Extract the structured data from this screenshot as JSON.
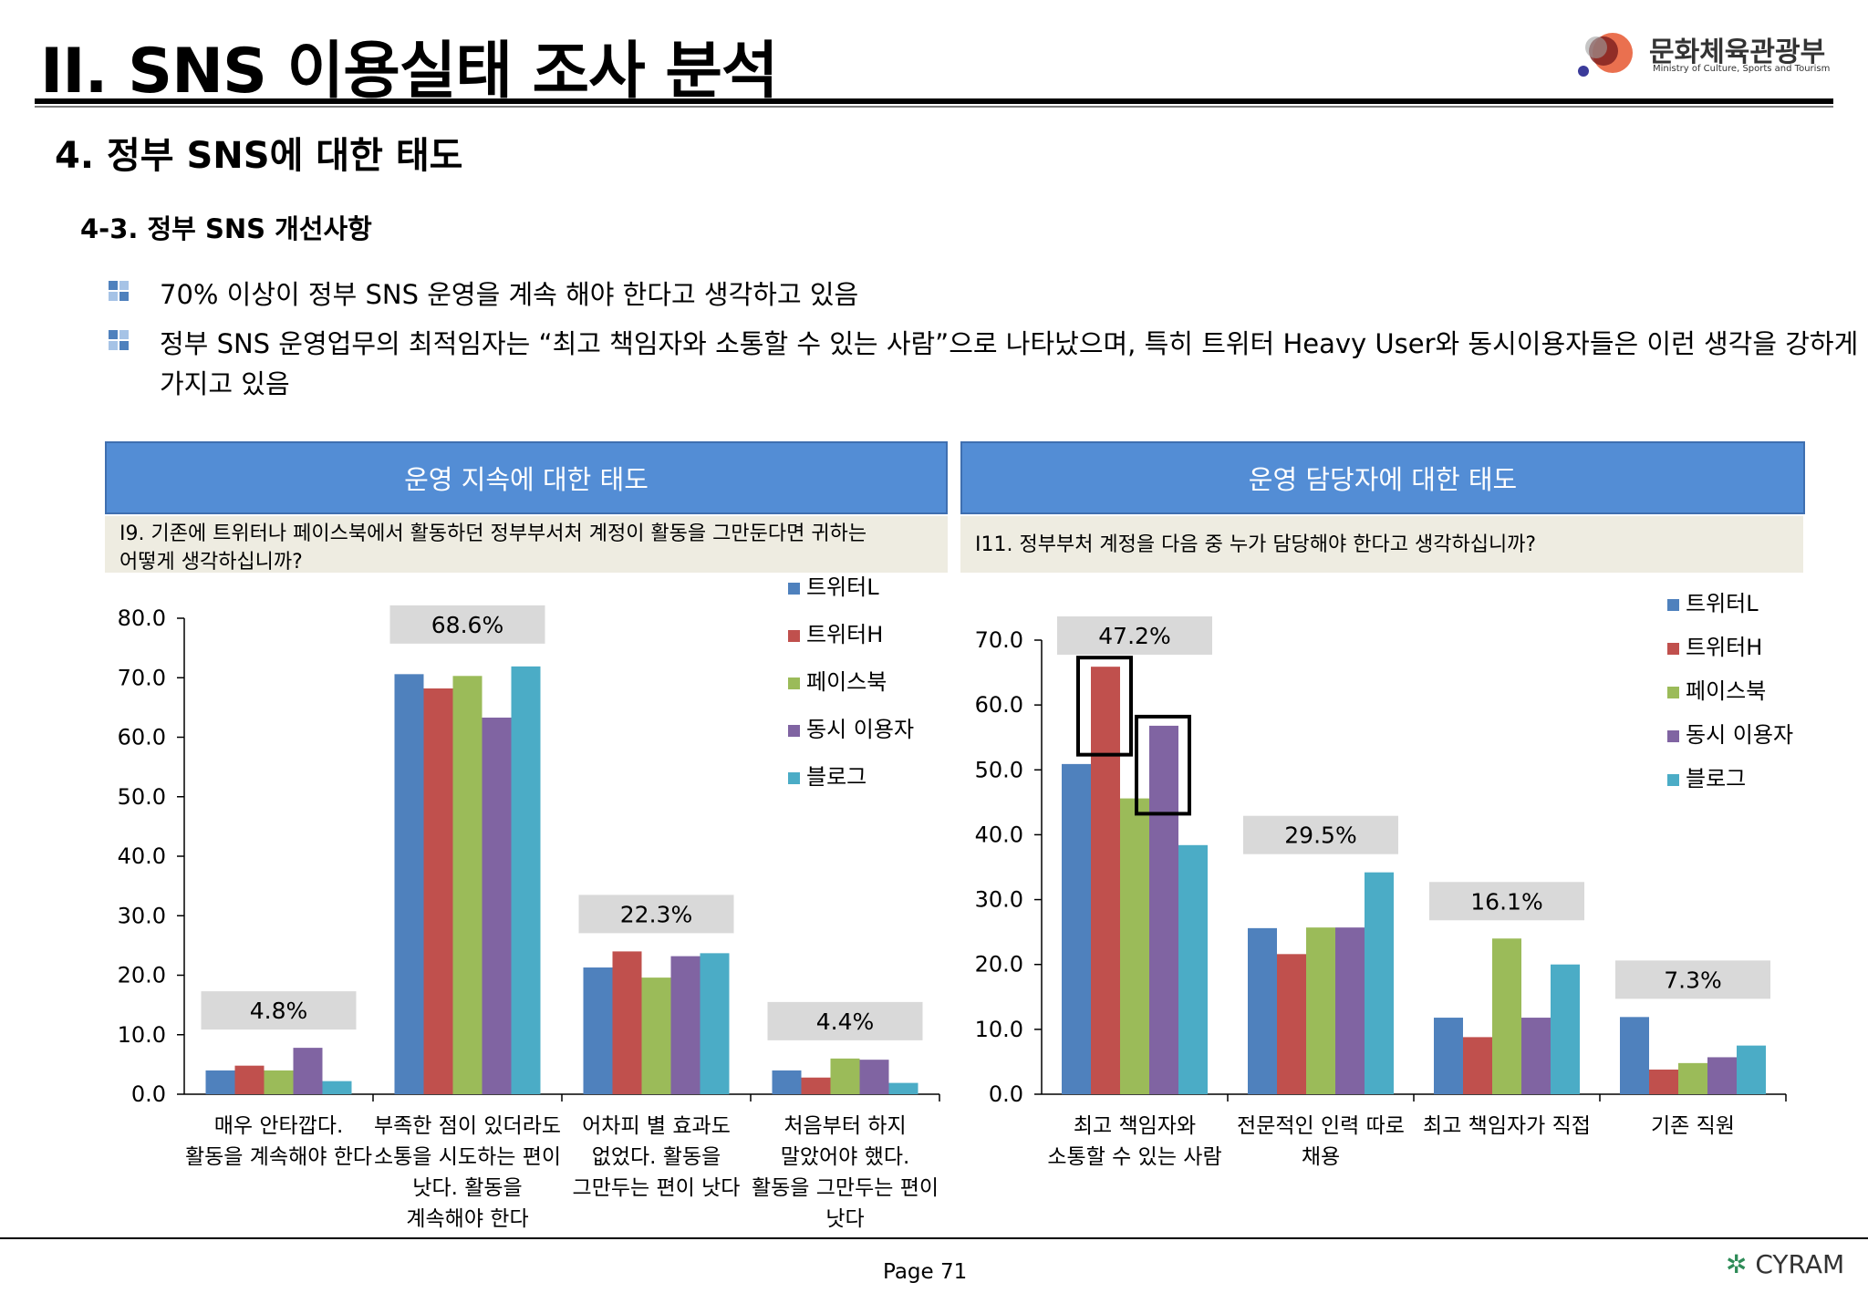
{
  "header": {
    "title": "II. SNS 이용실태 조사 분석",
    "logo_name": "문화체육관광부",
    "logo_sub": "Ministry of Culture, Sports and Tourism"
  },
  "section_title": "4. 정부 SNS에 대한 태도",
  "subsection_title": "4-3. 정부 SNS 개선사항",
  "bullets": [
    {
      "line1": "70% 이상이 정부 SNS 운영을 계속 해야 한다고 생각하고 있음",
      "line2": ""
    },
    {
      "line1": "정부 SNS 운영업무의 최적임자는 “최고 책임자와 소통할 수 있는 사람”으로 나타났으며, 특히 트위터 Heavy User와 동시이용자들은 이런 생각을 강하게",
      "line2": "가지고 있음"
    }
  ],
  "colors": {
    "header_blue": "#538dd5",
    "question_bg": "#eeece1",
    "callout_bg": "#d9d9d9",
    "series": [
      "#4f81bd",
      "#c0504d",
      "#9bbb59",
      "#8064a2",
      "#4bacc6"
    ]
  },
  "footer": {
    "page": "Page  71",
    "brand": "CYRAM"
  },
  "panels": [
    {
      "header": "운영 지속에 대한 태도",
      "question_line1": "I9. 기존에 트위터나 페이스북에서 활동하던 정부부서처 계정이 활동을 그만둔다면 귀하는",
      "question_line2": "어떻게 생각하십니까?"
    },
    {
      "header": "운영 담당자에 대한 태도",
      "question_line1": "I11. 정부부처 계정을 다음 중 누가 담당해야 한다고 생각하십니까?",
      "question_line2": ""
    }
  ],
  "chart_data": [
    {
      "type": "bar",
      "title": "운영 지속에 대한 태도",
      "categories": [
        [
          "매우 안타깝다.",
          "활동을 계속해야 한다"
        ],
        [
          "부족한 점이 있더라도",
          "소통을 시도하는 편이",
          "낫다. 활동을",
          "계속해야 한다"
        ],
        [
          "어차피 별 효과도",
          "없었다. 활동을",
          "그만두는 편이 낫다"
        ],
        [
          "처음부터 하지",
          "말았어야 했다.",
          "활동을 그만두는 편이",
          "낫다"
        ]
      ],
      "series": [
        {
          "name": "트위터L",
          "values": [
            4.0,
            70.6,
            21.3,
            4.0
          ]
        },
        {
          "name": "트위터H",
          "values": [
            4.8,
            68.2,
            24.0,
            2.8
          ]
        },
        {
          "name": "페이스북",
          "values": [
            4.0,
            70.3,
            19.6,
            6.0
          ]
        },
        {
          "name": "동시 이용자",
          "values": [
            7.8,
            63.3,
            23.2,
            5.8
          ]
        },
        {
          "name": "블로그",
          "values": [
            2.2,
            71.9,
            23.7,
            1.9
          ]
        }
      ],
      "callouts": [
        "4.8%",
        "68.6%",
        "22.3%",
        "4.4%"
      ],
      "ylim": [
        0,
        80
      ],
      "yticks": [
        "0.0",
        "10.0",
        "20.0",
        "30.0",
        "40.0",
        "50.0",
        "60.0",
        "70.0",
        "80.0"
      ],
      "legend": "top-right",
      "grid": false
    },
    {
      "type": "bar",
      "title": "운영 담당자에 대한 태도",
      "categories": [
        [
          "최고 책임자와",
          "소통할 수 있는 사람"
        ],
        [
          "전문적인 인력 따로",
          "채용"
        ],
        [
          "최고 책임자가 직접"
        ],
        [
          "기존 직원"
        ]
      ],
      "series": [
        {
          "name": "트위터L",
          "values": [
            50.9,
            25.6,
            11.8,
            11.9
          ]
        },
        {
          "name": "트위터H",
          "values": [
            65.9,
            21.6,
            8.8,
            3.8
          ]
        },
        {
          "name": "페이스북",
          "values": [
            45.6,
            25.7,
            24.0,
            4.8
          ]
        },
        {
          "name": "동시 이용자",
          "values": [
            56.8,
            25.7,
            11.8,
            5.7
          ]
        },
        {
          "name": "블로그",
          "values": [
            38.4,
            34.2,
            20.0,
            7.5
          ]
        }
      ],
      "callouts": [
        "47.2%",
        "29.5%",
        "16.1%",
        "7.3%"
      ],
      "highlighted": [
        [
          0,
          1
        ],
        [
          0,
          3
        ]
      ],
      "ylim": [
        0,
        70
      ],
      "yticks": [
        "0.0",
        "10.0",
        "20.0",
        "30.0",
        "40.0",
        "50.0",
        "60.0",
        "70.0"
      ],
      "legend": "top-right",
      "grid": false
    }
  ]
}
